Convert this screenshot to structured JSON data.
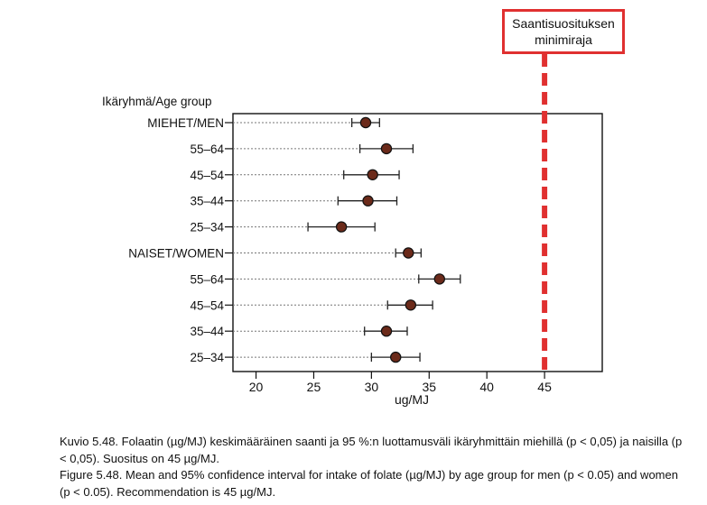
{
  "chart_data": {
    "type": "scatter",
    "title": "",
    "xlabel": "ug/MJ",
    "ylabel": "Ikäryhmä/Age group",
    "xlim": [
      18,
      50
    ],
    "xticks": [
      20,
      25,
      30,
      35,
      40,
      45
    ],
    "categories": [
      "MIEHET/MEN",
      "55–64",
      "45–54",
      "35–44",
      "25–34",
      "NAISET/WOMEN",
      "55–64",
      "45–54",
      "35–44",
      "25–34"
    ],
    "series": [
      {
        "mean": [
          29.5,
          31.3,
          30.1,
          29.7,
          27.4,
          33.2,
          35.9,
          33.4,
          31.3,
          32.1
        ],
        "ci_low": [
          28.3,
          29.0,
          27.6,
          27.1,
          24.5,
          32.1,
          34.1,
          31.4,
          29.4,
          30.0
        ],
        "ci_high": [
          30.7,
          33.6,
          32.4,
          32.2,
          30.3,
          34.3,
          37.7,
          35.3,
          33.1,
          34.2
        ]
      }
    ],
    "reference_line": {
      "x": 45,
      "color": "#e03030",
      "style": "dashed"
    },
    "grid": false,
    "marker_color": "#6b2a1a"
  },
  "callout": {
    "line1": "Saantisuosituksen",
    "line2": "minimiraja",
    "border_color": "#e03030"
  },
  "caption": {
    "fi": "Kuvio 5.48. Folaatin (µg/MJ) keskimääräinen saanti ja 95 %:n luottamusväli ikäryhmittäin miehillä (p < 0,05) ja naisilla (p < 0,05). Suositus on 45 µg/MJ.",
    "en": "Figure 5.48. Mean and 95% confidence interval for intake of folate (µg/MJ) by age group for men (p < 0.05) and women (p < 0.05). Recommendation is 45 µg/MJ."
  }
}
